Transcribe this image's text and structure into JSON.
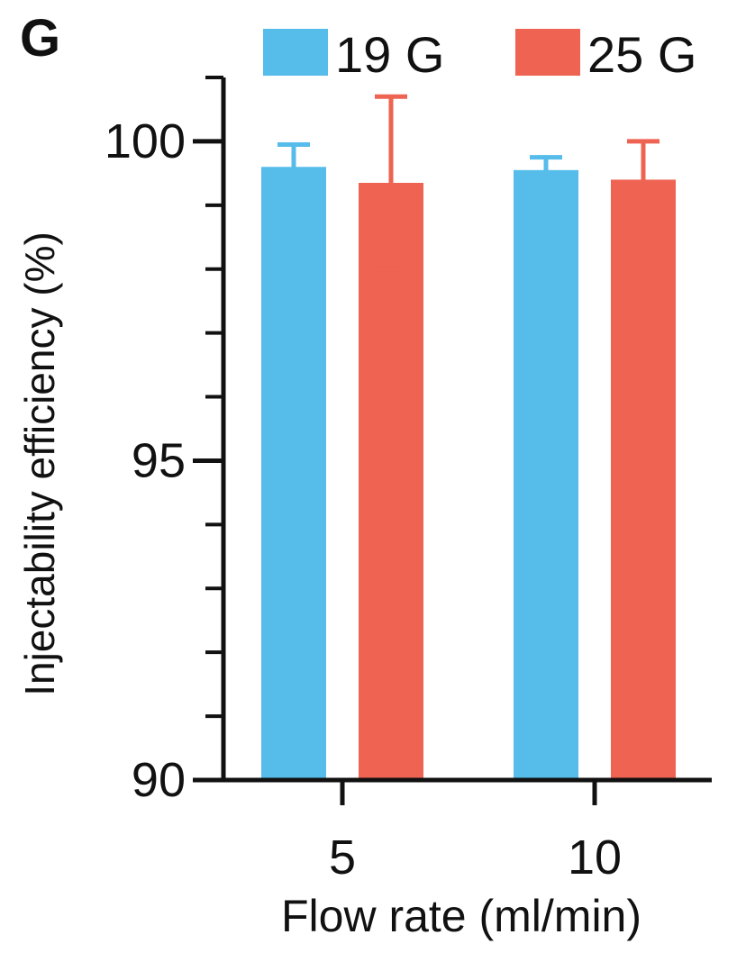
{
  "panel_label": "G",
  "colors": {
    "19 G": "#56BCEA",
    "25 G": "#EE6351",
    "axis": "#111111"
  },
  "chart_data": {
    "type": "bar",
    "title": "",
    "xlabel": "Flow rate (ml/min)",
    "ylabel": "Injectability efficiency (%)",
    "categories": [
      "5",
      "10"
    ],
    "ylim": [
      90,
      101
    ],
    "yticks": [
      90,
      95,
      100
    ],
    "yticklabels": [
      "90",
      "95",
      "100"
    ],
    "minor_yticks": [
      91,
      92,
      93,
      94,
      96,
      97,
      98,
      99,
      101
    ],
    "legend_position": "top",
    "grid": false,
    "series": [
      {
        "name": "19 G",
        "color": "#56BCEA",
        "values": [
          99.6,
          99.55
        ],
        "error": [
          0.35,
          0.2
        ]
      },
      {
        "name": "25 G",
        "color": "#EE6351",
        "values": [
          99.35,
          99.4
        ],
        "error": [
          1.35,
          0.6
        ]
      }
    ]
  }
}
